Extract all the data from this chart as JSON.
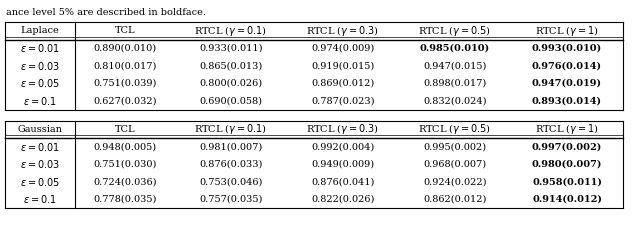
{
  "top_text": "ance level 5% are described in boldface.",
  "table1": {
    "header_col0": "Laplace",
    "headers": [
      "TCL",
      "RTCL ($\\gamma = 0.1$)",
      "RTCL ($\\gamma = 0.3$)",
      "RTCL ($\\gamma = 0.5$)",
      "RTCL ($\\gamma = 1$)"
    ],
    "rows": [
      {
        "label": "$\\epsilon = 0.01$",
        "values": [
          "0.890(0.010)",
          "0.933(0.011)",
          "0.974(0.009)",
          "0.985(0.010)",
          "0.993(0.010)"
        ],
        "bold": [
          false,
          false,
          false,
          true,
          true
        ]
      },
      {
        "label": "$\\epsilon = 0.03$",
        "values": [
          "0.810(0.017)",
          "0.865(0.013)",
          "0.919(0.015)",
          "0.947(0.015)",
          "0.976(0.014)"
        ],
        "bold": [
          false,
          false,
          false,
          false,
          true
        ]
      },
      {
        "label": "$\\epsilon = 0.05$",
        "values": [
          "0.751(0.039)",
          "0.800(0.026)",
          "0.869(0.012)",
          "0.898(0.017)",
          "0.947(0.019)"
        ],
        "bold": [
          false,
          false,
          false,
          false,
          true
        ]
      },
      {
        "label": "$\\epsilon = 0.1$",
        "values": [
          "0.627(0.032)",
          "0.690(0.058)",
          "0.787(0.023)",
          "0.832(0.024)",
          "0.893(0.014)"
        ],
        "bold": [
          false,
          false,
          false,
          false,
          true
        ]
      }
    ]
  },
  "table2": {
    "header_col0": "Gaussian",
    "headers": [
      "TCL",
      "RTCL ($\\gamma = 0.1$)",
      "RTCL ($\\gamma = 0.3$)",
      "RTCL ($\\gamma = 0.5$)",
      "RTCL ($\\gamma = 1$)"
    ],
    "rows": [
      {
        "label": "$\\epsilon = 0.01$",
        "values": [
          "0.948(0.005)",
          "0.981(0.007)",
          "0.992(0.004)",
          "0.995(0.002)",
          "0.997(0.002)"
        ],
        "bold": [
          false,
          false,
          false,
          false,
          true
        ]
      },
      {
        "label": "$\\epsilon = 0.03$",
        "values": [
          "0.751(0.030)",
          "0.876(0.033)",
          "0.949(0.009)",
          "0.968(0.007)",
          "0.980(0.007)"
        ],
        "bold": [
          false,
          false,
          false,
          false,
          true
        ]
      },
      {
        "label": "$\\epsilon = 0.05$",
        "values": [
          "0.724(0.036)",
          "0.753(0.046)",
          "0.876(0.041)",
          "0.924(0.022)",
          "0.958(0.011)"
        ],
        "bold": [
          false,
          false,
          false,
          false,
          true
        ]
      },
      {
        "label": "$\\epsilon = 0.1$",
        "values": [
          "0.778(0.035)",
          "0.757(0.035)",
          "0.822(0.026)",
          "0.862(0.012)",
          "0.914(0.012)"
        ],
        "bold": [
          false,
          false,
          false,
          false,
          true
        ]
      }
    ]
  },
  "font_size": 7.0,
  "header_font_size": 7.0,
  "figsize": [
    6.4,
    2.25
  ],
  "dpi": 100
}
